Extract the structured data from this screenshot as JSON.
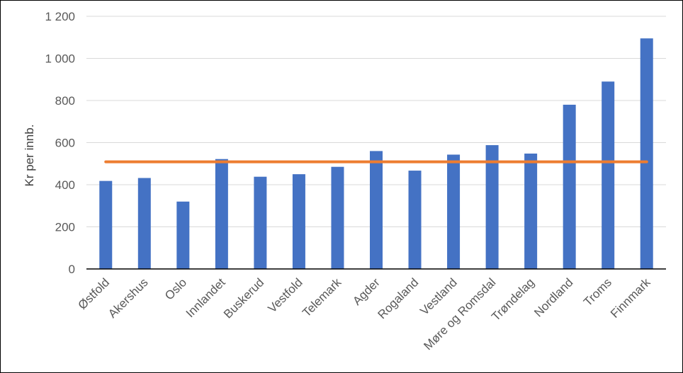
{
  "chart_data": {
    "type": "bar",
    "title": "",
    "xlabel": "",
    "ylabel": "Kr per innb.",
    "ylim": [
      0,
      1200
    ],
    "yticks": [
      0,
      200,
      400,
      600,
      800,
      1000,
      1200
    ],
    "ytick_labels": [
      "0",
      "200",
      "400",
      "600",
      "800",
      "1 000",
      "1 200"
    ],
    "grid": "horizontal",
    "legend": "none",
    "categories": [
      "Østfold",
      "Akershus",
      "Oslo",
      "Innlandet",
      "Buskerud",
      "Vestfold",
      "Telemark",
      "Agder",
      "Rogaland",
      "Vestland",
      "Møre og Romsdal",
      "Trøndelag",
      "Nordland",
      "Troms",
      "Finnmark"
    ],
    "series": [
      {
        "type": "bar",
        "color": "#4472C4",
        "values": [
          418,
          432,
          320,
          522,
          438,
          450,
          485,
          560,
          467,
          543,
          588,
          548,
          780,
          890,
          1095
        ]
      },
      {
        "type": "line",
        "color": "#ED7D31",
        "values": [
          509,
          509,
          509,
          509,
          509,
          509,
          509,
          509,
          509,
          509,
          509,
          509,
          509,
          509,
          509
        ]
      }
    ]
  }
}
